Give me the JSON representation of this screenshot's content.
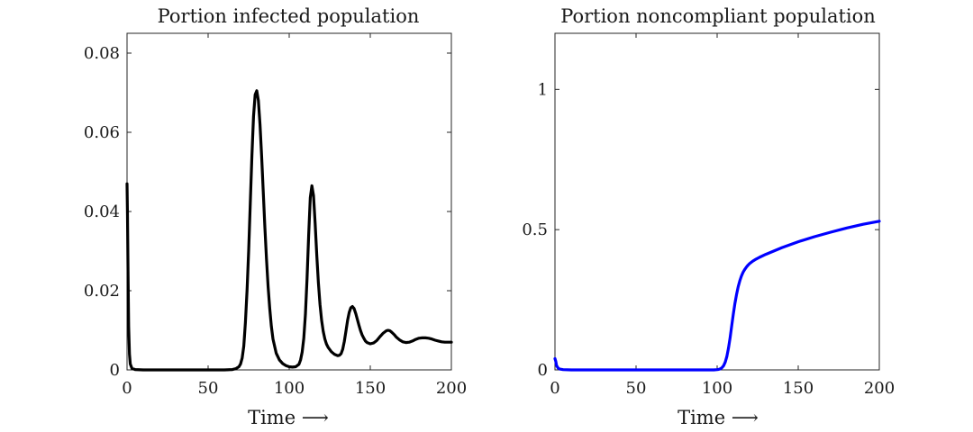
{
  "chart_data": [
    {
      "type": "line",
      "title": "Portion infected population",
      "xlabel": "Time ⟶",
      "ylabel": "",
      "xlim": [
        0,
        200
      ],
      "ylim": [
        0,
        0.085
      ],
      "xticks": [
        0,
        50,
        100,
        150,
        200
      ],
      "xtick_labels": [
        "0",
        "50",
        "100",
        "150",
        "200"
      ],
      "yticks": [
        0,
        0.02,
        0.04,
        0.06,
        0.08
      ],
      "ytick_labels": [
        "0",
        "0.02",
        "0.04",
        "0.06",
        "0.08"
      ],
      "series": [
        {
          "name": "infected",
          "color": "#000000",
          "x": [
            0,
            0.3,
            0.6,
            1,
            1.5,
            2,
            3,
            5,
            10,
            20,
            40,
            60,
            65,
            67,
            69,
            70,
            71,
            72,
            73,
            74,
            75,
            76,
            77,
            78,
            79,
            80,
            81,
            82,
            83,
            84,
            85,
            86,
            87,
            88,
            89,
            90,
            92,
            94,
            96,
            98,
            100,
            102,
            104,
            106,
            107,
            108,
            109,
            110,
            111,
            112,
            113,
            114,
            115,
            116,
            117,
            118,
            119,
            120,
            121,
            122,
            123,
            124,
            126,
            128,
            130,
            131,
            132,
            133,
            134,
            135,
            136,
            137,
            138,
            139,
            140,
            141,
            142,
            143,
            144,
            145,
            146,
            147,
            148,
            150,
            152,
            154,
            156,
            158,
            160,
            161,
            162,
            163,
            164,
            165,
            166,
            168,
            170,
            172,
            174,
            176,
            178,
            180,
            182,
            184,
            186,
            188,
            190,
            192,
            194,
            196,
            198,
            200
          ],
          "y": [
            0.047,
            0.039,
            0.025,
            0.011,
            0.004,
            0.0015,
            0.0004,
            0.0001,
            0,
            0,
            0,
            0,
            0.0001,
            0.0003,
            0.0008,
            0.0015,
            0.003,
            0.006,
            0.012,
            0.02,
            0.03,
            0.042,
            0.054,
            0.064,
            0.0695,
            0.0705,
            0.068,
            0.062,
            0.054,
            0.045,
            0.036,
            0.028,
            0.021,
            0.0155,
            0.011,
            0.0078,
            0.0042,
            0.0025,
            0.0016,
            0.0011,
            0.0008,
            0.0007,
            0.0008,
            0.0014,
            0.0025,
            0.0045,
            0.008,
            0.014,
            0.023,
            0.034,
            0.0435,
            0.0465,
            0.044,
            0.037,
            0.029,
            0.022,
            0.0165,
            0.0125,
            0.0097,
            0.0078,
            0.0065,
            0.0057,
            0.0046,
            0.0039,
            0.0036,
            0.0037,
            0.0041,
            0.0052,
            0.0072,
            0.0098,
            0.0125,
            0.0145,
            0.0157,
            0.016,
            0.0155,
            0.0143,
            0.0128,
            0.0113,
            0.0099,
            0.0088,
            0.008,
            0.0073,
            0.0069,
            0.0066,
            0.0068,
            0.0074,
            0.0084,
            0.0093,
            0.0099,
            0.01,
            0.0099,
            0.0096,
            0.0092,
            0.0088,
            0.0083,
            0.0076,
            0.0071,
            0.0069,
            0.007,
            0.0073,
            0.0077,
            0.008,
            0.0081,
            0.0081,
            0.008,
            0.0078,
            0.0075,
            0.0073,
            0.0071,
            0.007,
            0.007,
            0.007
          ]
        }
      ]
    },
    {
      "type": "line",
      "title": "Portion noncompliant population",
      "xlabel": "Time ⟶",
      "ylabel": "",
      "xlim": [
        0,
        200
      ],
      "ylim": [
        0,
        1.2
      ],
      "xticks": [
        0,
        50,
        100,
        150,
        200
      ],
      "xtick_labels": [
        "0",
        "50",
        "100",
        "150",
        "200"
      ],
      "yticks": [
        0,
        0.5,
        1
      ],
      "ytick_labels": [
        "0",
        "0.5",
        "1"
      ],
      "series": [
        {
          "name": "noncompliant",
          "color": "#0000ff",
          "x": [
            0,
            0.5,
            1,
            2,
            3,
            5,
            10,
            20,
            40,
            60,
            80,
            90,
            95,
            98,
            100,
            101,
            102,
            103,
            104,
            105,
            106,
            107,
            108,
            109,
            110,
            111,
            112,
            113,
            114,
            115,
            116,
            117,
            118,
            119,
            120,
            122,
            124,
            126,
            130,
            135,
            140,
            150,
            160,
            170,
            180,
            190,
            200
          ],
          "y": [
            0.04,
            0.03,
            0.015,
            0.006,
            0.003,
            0.001,
            0,
            0,
            0,
            0,
            0,
            0,
            0,
            0,
            0.001,
            0.002,
            0.004,
            0.008,
            0.015,
            0.028,
            0.048,
            0.078,
            0.115,
            0.158,
            0.2,
            0.238,
            0.27,
            0.297,
            0.318,
            0.335,
            0.348,
            0.358,
            0.366,
            0.373,
            0.379,
            0.388,
            0.395,
            0.401,
            0.412,
            0.424,
            0.436,
            0.457,
            0.475,
            0.491,
            0.506,
            0.519,
            0.53
          ]
        }
      ]
    }
  ]
}
